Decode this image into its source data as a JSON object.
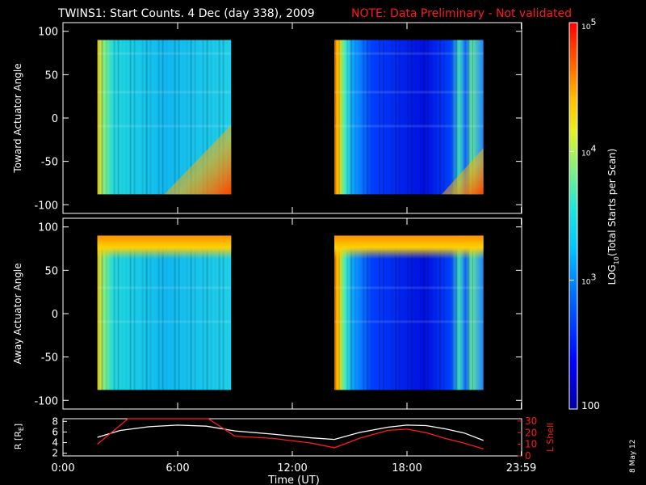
{
  "title": {
    "main": "TWINS1: Start Counts.  4 Dec (day 338), 2009",
    "note": "NOTE: Data Preliminary - Not validated",
    "note_color": "#ff1a1a"
  },
  "side_date": "8 May 12",
  "chart_data": [
    {
      "type": "heatmap",
      "name": "toward",
      "ylabel": "Toward Actuator Angle",
      "ylim": [
        -110,
        110
      ],
      "yticks": [
        100,
        50,
        0,
        -50,
        -100
      ],
      "xlim": [
        0,
        24
      ],
      "data_blocks": [
        {
          "t_start": 1.8,
          "t_end": 8.8,
          "angle_min": -88,
          "angle_max": 90,
          "dominant_level": "cyan",
          "edge": "yellow-orange at start, orange at low angles late"
        },
        {
          "t_start": 14.2,
          "t_end": 22.0,
          "angle_min": -88,
          "angle_max": 90,
          "dominant_level": "blue",
          "edge": "orange at start"
        }
      ]
    },
    {
      "type": "heatmap",
      "name": "away",
      "ylabel": "Away Actuator Angle",
      "ylim": [
        -110,
        110
      ],
      "yticks": [
        100,
        50,
        0,
        -50,
        -100
      ],
      "xlim": [
        0,
        24
      ],
      "data_blocks": [
        {
          "t_start": 1.8,
          "t_end": 8.8,
          "angle_min": -88,
          "angle_max": 90,
          "dominant_level": "cyan",
          "edge": "orange at high angles"
        },
        {
          "t_start": 14.2,
          "t_end": 22.0,
          "angle_min": -88,
          "angle_max": 90,
          "dominant_level": "blue",
          "edge": "orange at start"
        }
      ]
    },
    {
      "type": "line",
      "name": "orbit",
      "ylabel_left": "R [R",
      "ylabel_left_sub": "E",
      "ylabel_left_end": "]",
      "ylabel_right": "L Shell",
      "yticks_left": [
        8,
        6,
        4,
        2
      ],
      "ylim_left": [
        1.5,
        8.5
      ],
      "yticks_right": [
        30,
        20,
        10,
        0
      ],
      "ylim_right": [
        0,
        32
      ],
      "xlabel": "Time (UT)",
      "xticks": [
        {
          "v": 0,
          "label": "0:00"
        },
        {
          "v": 6,
          "label": "6:00"
        },
        {
          "v": 12,
          "label": "12:00"
        },
        {
          "v": 18,
          "label": "18:00"
        },
        {
          "v": 23.98,
          "label": "23:59"
        }
      ],
      "series": [
        {
          "name": "R",
          "color": "#ffffff",
          "x": [
            1.8,
            3,
            4.5,
            6,
            7.5,
            9,
            11,
            13,
            14.2,
            15.5,
            17,
            18,
            19,
            20,
            21,
            22
          ],
          "y": [
            5.0,
            6.3,
            7.0,
            7.3,
            7.1,
            6.2,
            5.6,
            4.9,
            4.6,
            5.9,
            6.9,
            7.3,
            7.2,
            6.6,
            5.8,
            4.4
          ]
        },
        {
          "name": "L Shell",
          "color": "#ff1a1a",
          "x": [
            1.8,
            3.4,
            7.6,
            9,
            11,
            13,
            14.2,
            15.5,
            17,
            18,
            19,
            20,
            21,
            22
          ],
          "y": [
            10,
            33,
            33,
            17,
            15,
            11,
            7,
            15,
            22,
            23,
            20,
            15,
            11,
            6
          ]
        }
      ]
    }
  ],
  "colorbar": {
    "label_main": "LOG",
    "label_sub": "10",
    "label_rest": "(Total Starts per Scan)",
    "ticks": [
      {
        "base": "10",
        "exp": "5",
        "v": 5
      },
      {
        "base": "10",
        "exp": "4",
        "v": 4
      },
      {
        "base": "10",
        "exp": "3",
        "v": 3
      },
      {
        "label": "100",
        "v": 2
      }
    ],
    "range": [
      2,
      5
    ]
  }
}
